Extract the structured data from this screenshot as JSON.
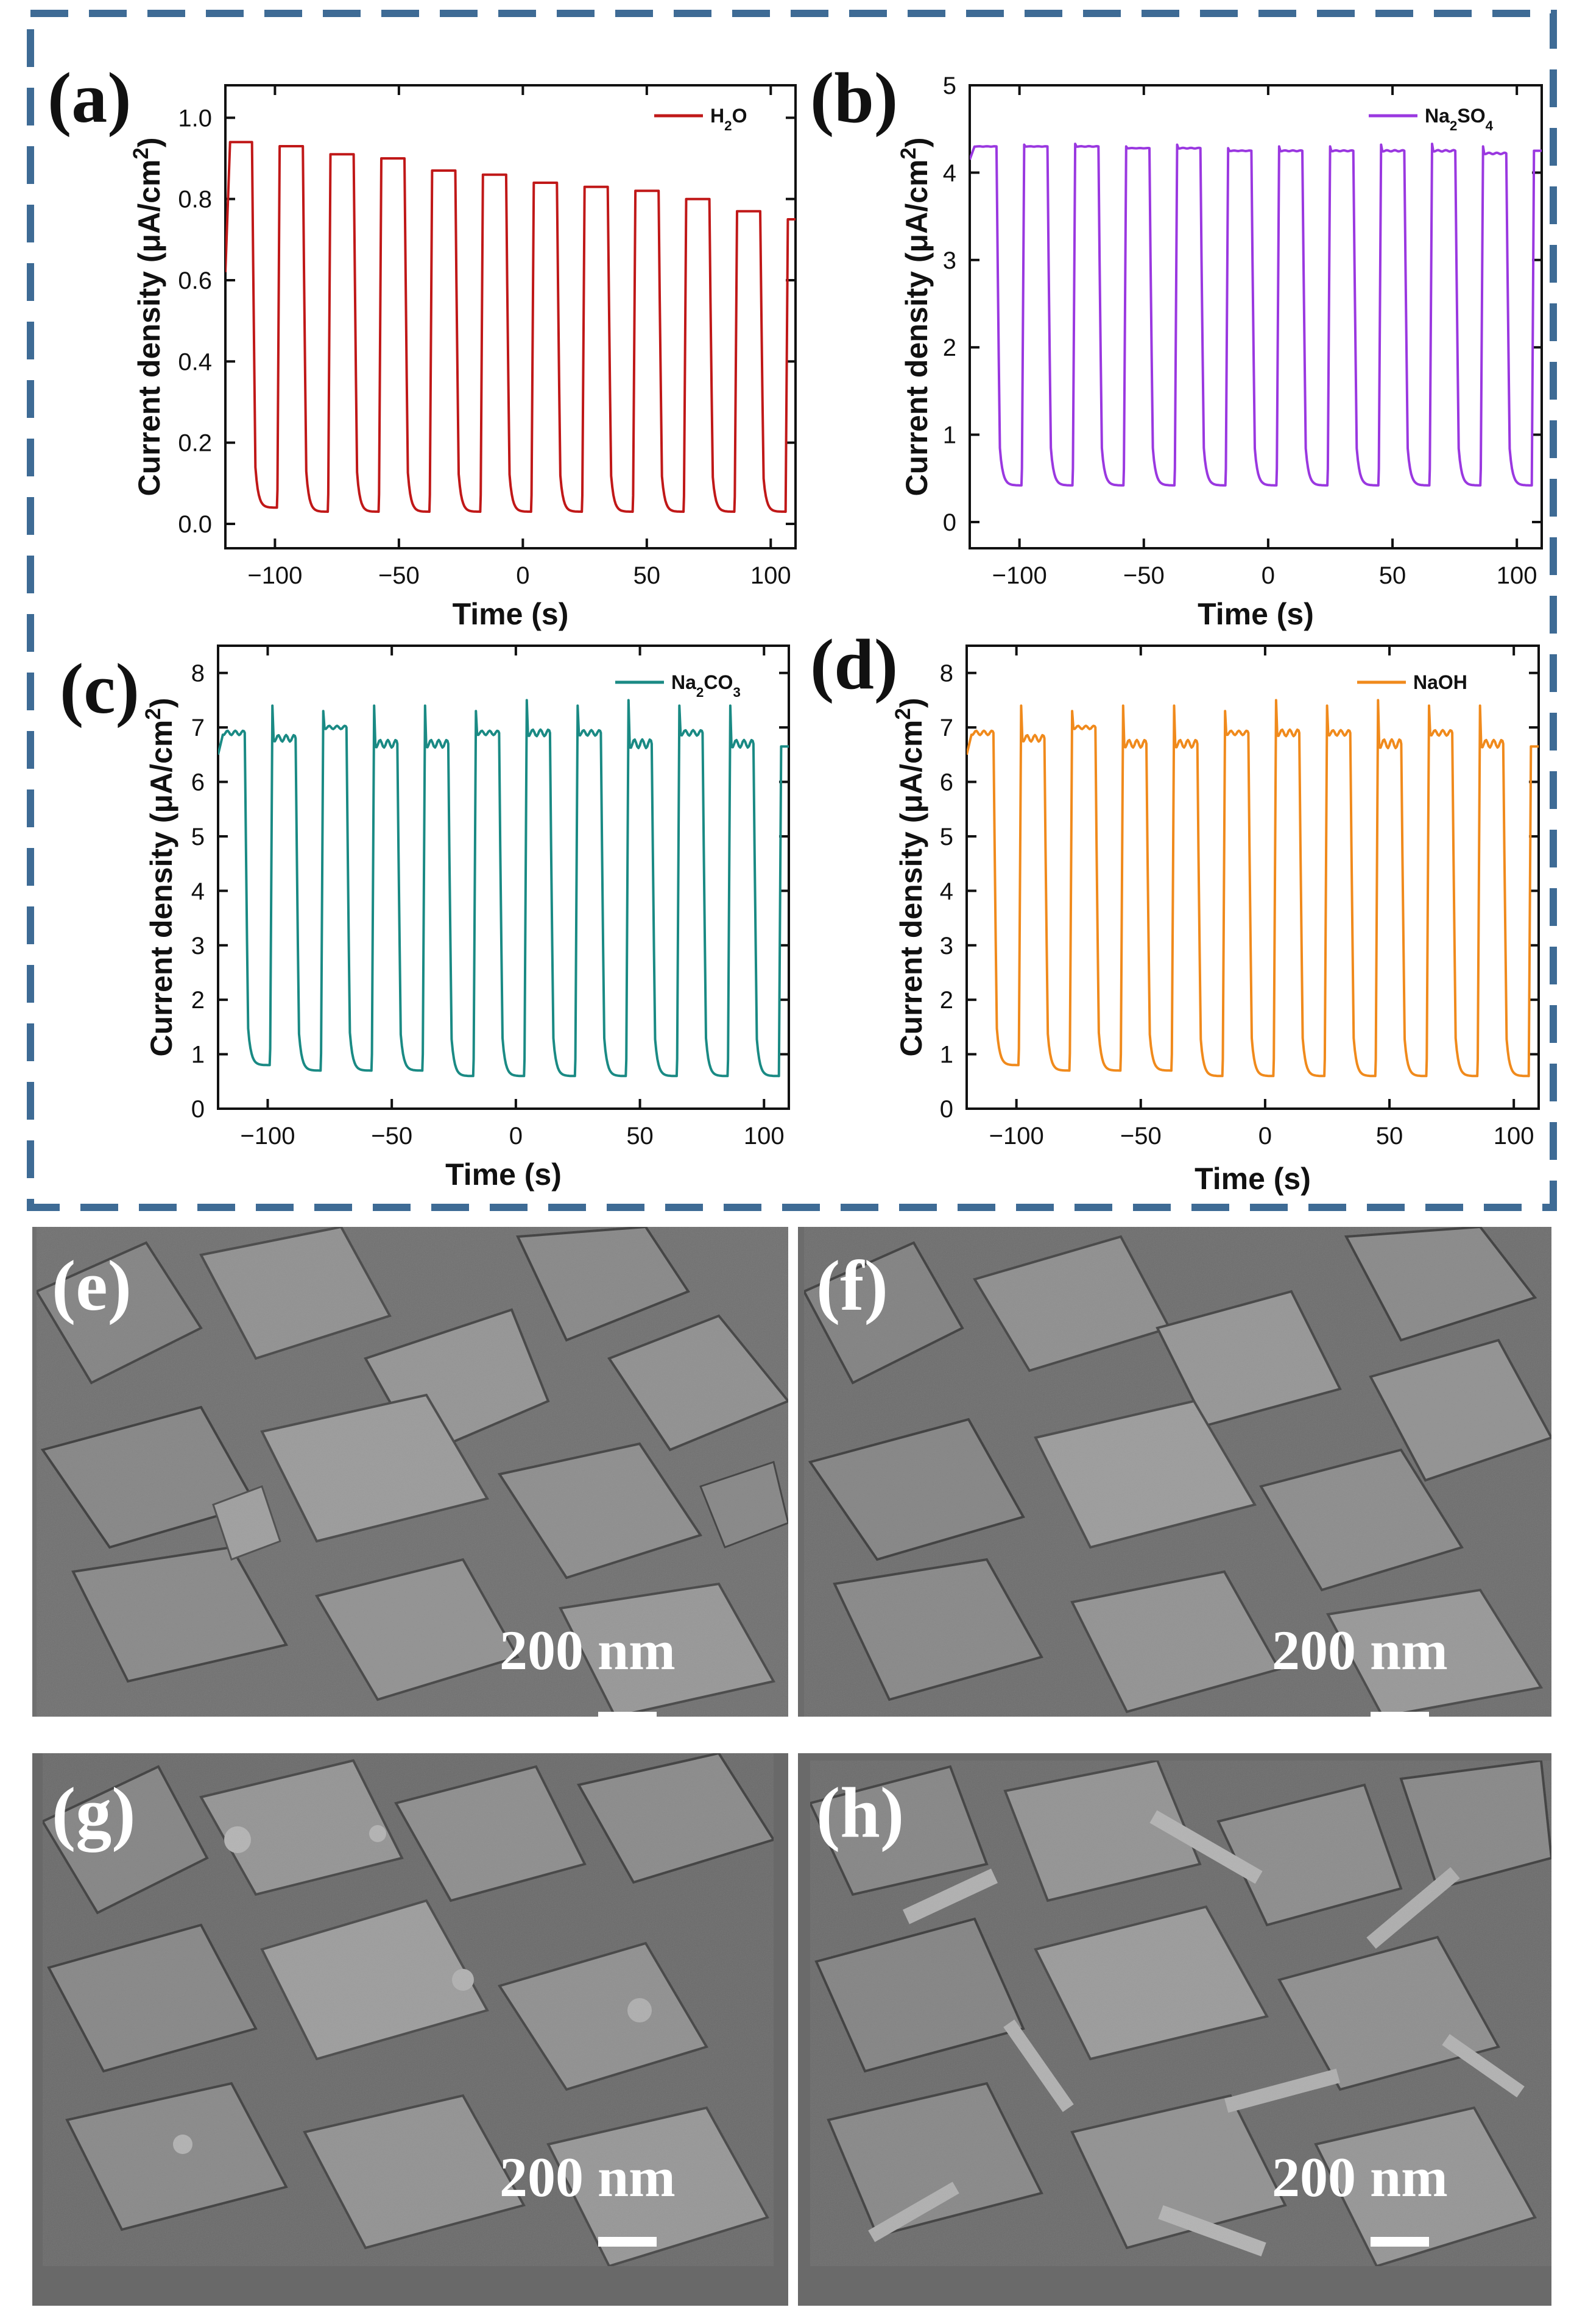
{
  "chart_data": [
    {
      "type": "line",
      "panel_label": "(a)",
      "legend": "H₂O",
      "legend_parts": [
        [
          "H",
          ""
        ],
        [
          "2",
          "sub"
        ],
        [
          "O",
          ""
        ]
      ],
      "color": "#c01818",
      "xlabel": "Time (s)",
      "ylabel": "Current density (μA/cm²)",
      "ylabel_parts": [
        [
          "Current density (",
          ""
        ],
        [
          "μ",
          ""
        ],
        [
          "A/cm",
          ""
        ],
        [
          "2",
          "sup"
        ],
        [
          ")",
          ""
        ]
      ],
      "xlim": [
        -120,
        110
      ],
      "ylim": [
        -0.06,
        1.08
      ],
      "xticks": [
        -100,
        -50,
        0,
        50,
        100
      ],
      "xtick_labels": [
        "−100",
        "−50",
        "0",
        "50",
        "100"
      ],
      "yticks": [
        0.0,
        0.2,
        0.4,
        0.6,
        0.8,
        1.0
      ],
      "ytick_labels": [
        "0.0",
        "0.2",
        "0.4",
        "0.6",
        "0.8",
        "1.0"
      ],
      "series": [
        {
          "name": "H₂O",
          "period": 20.5,
          "on_times": [
            -119.5,
            -99,
            -78.5,
            -58,
            -37.5,
            -17,
            3.5,
            24,
            44.5,
            65,
            85.5
          ],
          "on_values": [
            0.94,
            0.93,
            0.91,
            0.9,
            0.87,
            0.86,
            0.84,
            0.83,
            0.82,
            0.8,
            0.77
          ],
          "off_values": [
            0.04,
            0.03,
            0.03,
            0.03,
            0.03,
            0.03,
            0.03,
            0.03,
            0.03,
            0.03,
            0.03
          ],
          "spike_values": [
            0.94,
            0.93,
            0.91,
            0.9,
            0.87,
            0.86,
            0.84,
            0.83,
            0.82,
            0.8,
            0.77
          ],
          "start_value": 0.62,
          "end_value": 0.75
        }
      ]
    },
    {
      "type": "line",
      "panel_label": "(b)",
      "legend": "Na₂SO₄",
      "legend_parts": [
        [
          "Na",
          ""
        ],
        [
          "2",
          "sub"
        ],
        [
          "SO",
          ""
        ],
        [
          "4",
          "sub"
        ]
      ],
      "color": "#9a38e0",
      "xlabel": "Time (s)",
      "ylabel": "Current density (μA/cm²)",
      "ylabel_parts": [
        [
          "Current density (",
          ""
        ],
        [
          "μ",
          ""
        ],
        [
          "A/cm",
          ""
        ],
        [
          "2",
          "sup"
        ],
        [
          ")",
          ""
        ]
      ],
      "xlim": [
        -120,
        110
      ],
      "ylim": [
        -0.3,
        5.0
      ],
      "xticks": [
        -100,
        -50,
        0,
        50,
        100
      ],
      "xtick_labels": [
        "−100",
        "−50",
        "0",
        "50",
        "100"
      ],
      "yticks": [
        0,
        1,
        2,
        3,
        4,
        5
      ],
      "ytick_labels": [
        "0",
        "1",
        "2",
        "3",
        "4",
        "5"
      ],
      "series": [
        {
          "name": "Na₂SO₄",
          "period": 20.5,
          "on_times": [
            -119.5,
            -99,
            -78.5,
            -58,
            -37.5,
            -17,
            3.5,
            24,
            44.5,
            65,
            85.5
          ],
          "on_values": [
            4.3,
            4.3,
            4.3,
            4.28,
            4.28,
            4.25,
            4.25,
            4.25,
            4.25,
            4.25,
            4.22
          ],
          "off_values": [
            0.42,
            0.42,
            0.42,
            0.42,
            0.42,
            0.42,
            0.42,
            0.42,
            0.42,
            0.42,
            0.42
          ],
          "spike_values": [
            4.32,
            4.32,
            4.33,
            4.3,
            4.32,
            4.28,
            4.3,
            4.3,
            4.32,
            4.33,
            4.3
          ],
          "start_value": 4.15,
          "end_value": 4.25
        }
      ]
    },
    {
      "type": "line",
      "panel_label": "(c)",
      "legend": "Na₂CO₃",
      "legend_parts": [
        [
          "Na",
          ""
        ],
        [
          "2",
          "sub"
        ],
        [
          "CO",
          ""
        ],
        [
          "3",
          "sub"
        ]
      ],
      "color": "#1a8a84",
      "xlabel": "Time (s)",
      "ylabel": "Current density (μA/cm²)",
      "ylabel_parts": [
        [
          "Current density (",
          ""
        ],
        [
          "μ",
          ""
        ],
        [
          "A/cm",
          ""
        ],
        [
          "2",
          "sup"
        ],
        [
          ")",
          ""
        ]
      ],
      "xlim": [
        -120,
        110
      ],
      "ylim": [
        0,
        8.5
      ],
      "xticks": [
        -100,
        -50,
        0,
        50,
        100
      ],
      "xtick_labels": [
        "−100",
        "−50",
        "0",
        "50",
        "100"
      ],
      "yticks": [
        0,
        1,
        2,
        3,
        4,
        5,
        6,
        7,
        8
      ],
      "ytick_labels": [
        "0",
        "1",
        "2",
        "3",
        "4",
        "5",
        "6",
        "7",
        "8"
      ],
      "series": [
        {
          "name": "Na₂CO₃",
          "period": 20.5,
          "on_times": [
            -119.5,
            -99,
            -78.5,
            -58,
            -37.5,
            -17,
            3.5,
            24,
            44.5,
            65,
            85.5
          ],
          "on_values": [
            6.9,
            6.8,
            7.0,
            6.7,
            6.7,
            6.9,
            6.9,
            6.9,
            6.7,
            6.9,
            6.7
          ],
          "off_values": [
            0.8,
            0.7,
            0.7,
            0.7,
            0.6,
            0.6,
            0.6,
            0.6,
            0.6,
            0.6,
            0.6
          ],
          "spike_values": [
            7.3,
            7.4,
            7.3,
            7.4,
            7.4,
            7.3,
            7.5,
            7.4,
            7.5,
            7.4,
            7.4
          ],
          "start_value": 6.5,
          "end_value": 6.65
        }
      ]
    },
    {
      "type": "line",
      "panel_label": "(d)",
      "legend": "NaOH",
      "legend_parts": [
        [
          "NaOH",
          ""
        ]
      ],
      "color": "#f08a1c",
      "xlabel": "Time (s)",
      "ylabel": "Current density (μA/cm²)",
      "ylabel_parts": [
        [
          "Current density (",
          ""
        ],
        [
          "μ",
          ""
        ],
        [
          "A/cm",
          ""
        ],
        [
          "2",
          "sup"
        ],
        [
          ")",
          ""
        ]
      ],
      "xlim": [
        -120,
        110
      ],
      "ylim": [
        0,
        8.5
      ],
      "xticks": [
        -100,
        -50,
        0,
        50,
        100
      ],
      "xtick_labels": [
        "−100",
        "−50",
        "0",
        "50",
        "100"
      ],
      "yticks": [
        0,
        1,
        2,
        3,
        4,
        5,
        6,
        7,
        8
      ],
      "ytick_labels": [
        "0",
        "1",
        "2",
        "3",
        "4",
        "5",
        "6",
        "7",
        "8"
      ],
      "series": [
        {
          "name": "NaOH",
          "period": 20.5,
          "on_times": [
            -119.5,
            -99,
            -78.5,
            -58,
            -37.5,
            -17,
            3.5,
            24,
            44.5,
            65,
            85.5
          ],
          "on_values": [
            6.9,
            6.8,
            7.0,
            6.7,
            6.7,
            6.9,
            6.9,
            6.9,
            6.7,
            6.9,
            6.7
          ],
          "off_values": [
            0.8,
            0.7,
            0.7,
            0.7,
            0.6,
            0.6,
            0.6,
            0.6,
            0.6,
            0.6,
            0.6
          ],
          "spike_values": [
            7.3,
            7.4,
            7.3,
            7.4,
            7.4,
            7.3,
            7.5,
            7.4,
            7.5,
            7.4,
            7.4
          ],
          "start_value": 6.5,
          "end_value": 6.65
        }
      ]
    }
  ],
  "sem_images": [
    {
      "label": "(e)",
      "scale_label": "200 nm",
      "tone": "#6f6f6f",
      "style": "rhombic crystals"
    },
    {
      "label": "(f)",
      "scale_label": "200 nm",
      "tone": "#6c6c6c",
      "style": "rhombic crystals"
    },
    {
      "label": "(g)",
      "scale_label": "200 nm",
      "tone": "#696969",
      "style": "rhombic crystals with surface particles"
    },
    {
      "label": "(h)",
      "scale_label": "200 nm",
      "tone": "#6a6a6a",
      "style": "fragmented flakes"
    }
  ],
  "frame_color": "#3e6b95"
}
